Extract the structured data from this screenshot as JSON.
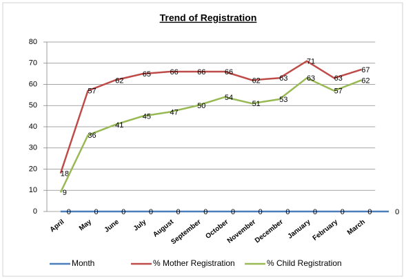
{
  "chart_data": {
    "type": "line",
    "title": "Trend of Registration",
    "categories": [
      "April",
      "May",
      "June",
      "July",
      "August",
      "September",
      "October",
      "November",
      "December",
      "January",
      "February",
      "March",
      null
    ],
    "series": [
      {
        "name": "Month",
        "color": "#4a7ebb",
        "values": [
          0,
          0,
          0,
          0,
          0,
          0,
          0,
          0,
          0,
          0,
          0,
          0,
          0
        ]
      },
      {
        "name": "% Mother Registration",
        "color": "#be4b48",
        "values": [
          18,
          57,
          62,
          65,
          66,
          66,
          66,
          62,
          63,
          71,
          63,
          67,
          null
        ]
      },
      {
        "name": "% Child Registration",
        "color": "#98b954",
        "values": [
          9,
          36,
          41,
          45,
          47,
          50,
          54,
          51,
          53,
          63,
          57,
          62,
          null
        ]
      }
    ],
    "ylim": [
      0,
      80
    ],
    "yticks": [
      0,
      10,
      20,
      30,
      40,
      50,
      60,
      70,
      80
    ],
    "grid": true,
    "legend": "bottom"
  }
}
